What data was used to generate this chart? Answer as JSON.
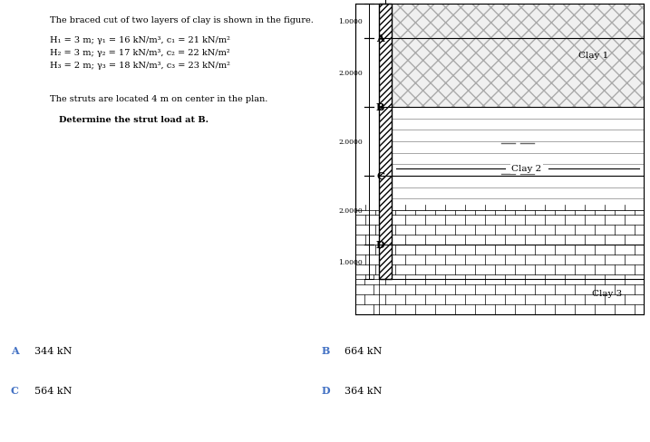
{
  "title": "The braced cut of two layers of clay is shown in the figure.",
  "line1": "H₁ = 3 m; γ₁ = 16 kN/m³, c₁ = 21 kN/m²",
  "line2": "H₂ = 3 m; γ₂ = 17 kN/m³, c₂ = 22 kN/m²",
  "line3": "H₃ = 2 m; γ₃ = 18 kN/m³, c₃ = 23 kN/m²",
  "strut_text": "The struts are located 4 m on center in the plan.",
  "question": "Determine the strut load at B.",
  "answer_A_label": "A",
  "answer_A_val": "344 kN",
  "answer_B_label": "B",
  "answer_B_val": "664 kN",
  "answer_C_label": "C",
  "answer_C_val": "564 kN",
  "answer_D_label": "D",
  "answer_D_val": "364 kN",
  "label_color": "#4472C4",
  "bg_color": "#ffffff"
}
